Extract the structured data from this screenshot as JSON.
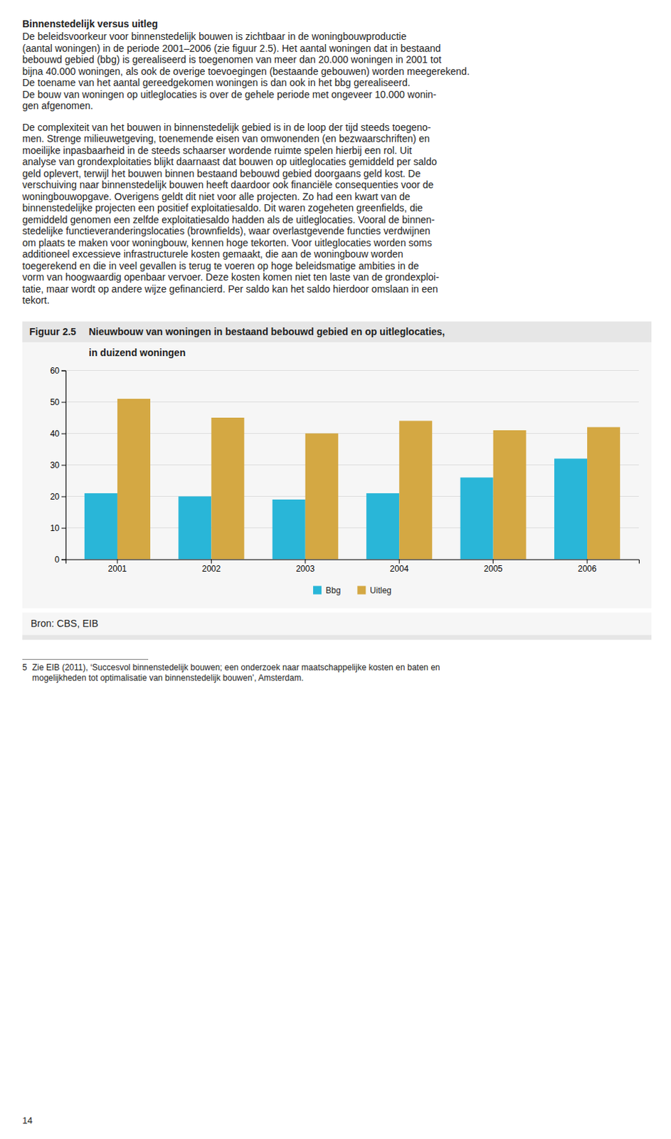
{
  "header": "Binnenstedelijk versus uitleg",
  "header_para": [
    "De beleidsvoorkeur voor binnenstedelijk bouwen is zichtbaar in de woningbouwproductie",
    "(aantal woningen) in de periode 2001–2006 (zie figuur 2.5). Het aantal woningen dat in bestaand",
    "bebouwd gebied (bbg) is gerealiseerd is toegenomen van meer dan 20.000 woningen in 2001 tot",
    "bijna 40.000 woningen, als ook de overige toevoegingen (bestaande gebouwen) worden meegerekend.",
    "De toename van het aantal gereedgekomen woningen is dan ook in het bbg gerealiseerd.",
    "De bouw van woningen op uitleglocaties is over de gehele periode met ongeveer 10.000 wonin-",
    "gen afgenomen."
  ],
  "body_para": [
    "De complexiteit van het bouwen in binnenstedelijk gebied is in de loop der tijd steeds toegeno-",
    "men. Strenge milieuwetgeving, toenemende eisen van omwonenden (en bezwaarschriften) en",
    "moeilijke inpasbaarheid in de steeds schaarser wordende ruimte spelen hierbij een rol. Uit",
    "analyse van grondexploitaties blijkt daarnaast dat bouwen op uitleglocaties gemiddeld per saldo",
    "geld oplevert, terwijl het bouwen binnen bestaand bebouwd gebied doorgaans geld kost.  De",
    "verschuiving naar binnenstedelijk bouwen heeft daardoor ook financiële consequenties voor de",
    "woningbouwopgave. Overigens geldt dit niet voor alle projecten. Zo had een kwart van de",
    "binnenstedelijke projecten een positief exploitatiesaldo. Dit waren zogeheten greenfields, die",
    "gemiddeld genomen een zelfde exploitatiesaldo hadden als de uitleglocaties. Vooral de binnen-",
    "stedelijke functieveranderingslocaties (brownfields), waar overlastgevende functies verdwijnen",
    "om plaats te maken voor woningbouw, kennen hoge tekorten. Voor uitleglocaties worden soms",
    "additioneel excessieve infrastructurele kosten gemaakt, die aan de woningbouw worden",
    "toegerekend en die in veel gevallen is terug te voeren op hoge beleidsmatige ambities in de",
    "vorm van hoogwaardig openbaar vervoer. Deze kosten komen niet ten laste van de grondexploi-",
    "tatie, maar wordt op andere wijze gefinancierd. Per saldo kan het saldo hierdoor omslaan in een",
    "tekort."
  ],
  "chart_data": {
    "type": "bar",
    "label": "Figuur 2.5",
    "title": "Nieuwbouw van woningen in bestaand bebouwd gebied en op uitleglocaties,",
    "subtitle": "in duizend woningen",
    "categories": [
      "2001",
      "2002",
      "2003",
      "2004",
      "2005",
      "2006"
    ],
    "series": [
      {
        "name": "Bbg",
        "color": "#29b6d8",
        "values": [
          21,
          20,
          19,
          21,
          26,
          32
        ]
      },
      {
        "name": "Uitleg",
        "color": "#d4a843",
        "values": [
          51,
          45,
          40,
          44,
          41,
          42
        ]
      }
    ],
    "ylim": [
      0,
      60
    ],
    "yticks": [
      0,
      10,
      20,
      30,
      40,
      50,
      60
    ],
    "grid": true,
    "legend": "bottom",
    "source": "Bron: CBS, EIB"
  },
  "footnote": {
    "number": "5",
    "lines": [
      "Zie EIB (2011), ‘Succesvol binnenstedelijk bouwen; een onderzoek naar maatschappelijke kosten en baten en",
      "mogelijkheden tot optimalisatie van binnenstedelijk bouwen’, Amsterdam."
    ]
  },
  "page_number": "14"
}
